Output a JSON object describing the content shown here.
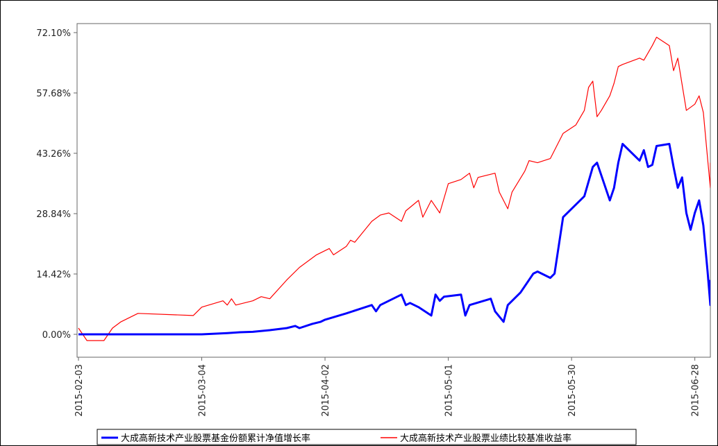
{
  "chart_data": {
    "type": "line",
    "title": "",
    "xlabel": "",
    "ylabel": "",
    "ylim": [
      -6,
      74
    ],
    "y_ticks": [
      0.0,
      14.42,
      28.84,
      43.26,
      57.68,
      72.1
    ],
    "y_tick_labels": [
      "0.00%",
      "14.42%",
      "28.84%",
      "43.26%",
      "57.68%",
      "72.10%"
    ],
    "x_range": [
      "2015-02-03",
      "2015-07-01"
    ],
    "x_ticks": [
      "2015-02-03",
      "2015-03-04",
      "2015-04-02",
      "2015-05-01",
      "2015-05-30",
      "2015-06-28"
    ],
    "grid": false,
    "legend_position": "bottom",
    "series": [
      {
        "name": "大成高新技术产业股票基金份额累计净值增长率",
        "color": "#0000ff",
        "points": [
          [
            "2015-02-03",
            0.0
          ],
          [
            "2015-02-10",
            0.0
          ],
          [
            "2015-02-17",
            0.0
          ],
          [
            "2015-02-26",
            0.0
          ],
          [
            "2015-03-04",
            0.0
          ],
          [
            "2015-03-10",
            0.3
          ],
          [
            "2015-03-13",
            0.5
          ],
          [
            "2015-03-16",
            0.6
          ],
          [
            "2015-03-20",
            1.0
          ],
          [
            "2015-03-24",
            1.5
          ],
          [
            "2015-03-26",
            2.0
          ],
          [
            "2015-03-27",
            1.5
          ],
          [
            "2015-03-30",
            2.5
          ],
          [
            "2015-04-01",
            3.0
          ],
          [
            "2015-04-02",
            3.5
          ],
          [
            "2015-04-07",
            5.0
          ],
          [
            "2015-04-10",
            6.0
          ],
          [
            "2015-04-13",
            7.0
          ],
          [
            "2015-04-14",
            5.5
          ],
          [
            "2015-04-15",
            7.0
          ],
          [
            "2015-04-20",
            9.5
          ],
          [
            "2015-04-21",
            7.0
          ],
          [
            "2015-04-22",
            7.5
          ],
          [
            "2015-04-24",
            6.5
          ],
          [
            "2015-04-27",
            4.5
          ],
          [
            "2015-04-28",
            9.5
          ],
          [
            "2015-04-29",
            8.0
          ],
          [
            "2015-04-30",
            9.0
          ],
          [
            "2015-05-04",
            9.5
          ],
          [
            "2015-05-05",
            4.5
          ],
          [
            "2015-05-06",
            7.0
          ],
          [
            "2015-05-11",
            8.5
          ],
          [
            "2015-05-12",
            5.5
          ],
          [
            "2015-05-14",
            3.0
          ],
          [
            "2015-05-15",
            7.0
          ],
          [
            "2015-05-18",
            10.0
          ],
          [
            "2015-05-21",
            14.5
          ],
          [
            "2015-05-22",
            15.0
          ],
          [
            "2015-05-25",
            13.5
          ],
          [
            "2015-05-26",
            14.5
          ],
          [
            "2015-05-28",
            28.0
          ],
          [
            "2015-06-02",
            33.0
          ],
          [
            "2015-06-04",
            40.0
          ],
          [
            "2015-06-05",
            41.0
          ],
          [
            "2015-06-08",
            32.0
          ],
          [
            "2015-06-09",
            35.0
          ],
          [
            "2015-06-10",
            41.0
          ],
          [
            "2015-06-11",
            45.5
          ],
          [
            "2015-06-12",
            44.5
          ],
          [
            "2015-06-15",
            41.5
          ],
          [
            "2015-06-16",
            44.0
          ],
          [
            "2015-06-17",
            40.0
          ],
          [
            "2015-06-18",
            40.5
          ],
          [
            "2015-06-19",
            45.0
          ],
          [
            "2015-06-22",
            45.5
          ],
          [
            "2015-06-23",
            40.0
          ],
          [
            "2015-06-24",
            35.0
          ],
          [
            "2015-06-25",
            37.5
          ],
          [
            "2015-06-26",
            29.0
          ],
          [
            "2015-06-27",
            25.0
          ],
          [
            "2015-06-28",
            29.0
          ],
          [
            "2015-06-29",
            32.0
          ],
          [
            "2015-06-30",
            26.0
          ],
          [
            "2015-07-01",
            15.0
          ],
          [
            "2015-07-06",
            7.0
          ],
          [
            "2015-07-08",
            13.0
          ]
        ]
      },
      {
        "name": "大成高新技术产业股票业绩比较基准收益率",
        "color": "#ff0000",
        "points": [
          [
            "2015-02-03",
            1.5
          ],
          [
            "2015-02-05",
            -1.5
          ],
          [
            "2015-02-09",
            -1.5
          ],
          [
            "2015-02-11",
            1.5
          ],
          [
            "2015-02-13",
            3.0
          ],
          [
            "2015-02-17",
            5.0
          ],
          [
            "2015-03-02",
            4.5
          ],
          [
            "2015-03-04",
            6.5
          ],
          [
            "2015-03-09",
            8.0
          ],
          [
            "2015-03-10",
            7.0
          ],
          [
            "2015-03-11",
            8.5
          ],
          [
            "2015-03-12",
            7.0
          ],
          [
            "2015-03-16",
            8.0
          ],
          [
            "2015-03-18",
            9.0
          ],
          [
            "2015-03-20",
            8.5
          ],
          [
            "2015-03-24",
            13.0
          ],
          [
            "2015-03-27",
            16.0
          ],
          [
            "2015-03-31",
            19.0
          ],
          [
            "2015-04-03",
            20.5
          ],
          [
            "2015-04-04",
            19.0
          ],
          [
            "2015-04-07",
            21.0
          ],
          [
            "2015-04-08",
            22.5
          ],
          [
            "2015-04-09",
            22.0
          ],
          [
            "2015-04-13",
            27.0
          ],
          [
            "2015-04-15",
            28.5
          ],
          [
            "2015-04-17",
            29.0
          ],
          [
            "2015-04-20",
            27.0
          ],
          [
            "2015-04-21",
            29.5
          ],
          [
            "2015-04-24",
            32.0
          ],
          [
            "2015-04-25",
            28.0
          ],
          [
            "2015-04-27",
            32.0
          ],
          [
            "2015-04-29",
            29.0
          ],
          [
            "2015-05-01",
            36.0
          ],
          [
            "2015-05-04",
            37.0
          ],
          [
            "2015-05-06",
            38.5
          ],
          [
            "2015-05-07",
            35.0
          ],
          [
            "2015-05-08",
            37.5
          ],
          [
            "2015-05-12",
            38.5
          ],
          [
            "2015-05-13",
            34.0
          ],
          [
            "2015-05-15",
            30.0
          ],
          [
            "2015-05-16",
            34.0
          ],
          [
            "2015-05-19",
            39.0
          ],
          [
            "2015-05-20",
            41.5
          ],
          [
            "2015-05-22",
            41.0
          ],
          [
            "2015-05-25",
            42.0
          ],
          [
            "2015-05-28",
            48.0
          ],
          [
            "2015-05-31",
            50.0
          ],
          [
            "2015-06-02",
            53.5
          ],
          [
            "2015-06-03",
            59.0
          ],
          [
            "2015-06-04",
            60.5
          ],
          [
            "2015-06-05",
            52.0
          ],
          [
            "2015-06-06",
            53.5
          ],
          [
            "2015-06-08",
            57.0
          ],
          [
            "2015-06-09",
            60.0
          ],
          [
            "2015-06-10",
            64.0
          ],
          [
            "2015-06-11",
            64.5
          ],
          [
            "2015-06-15",
            66.0
          ],
          [
            "2015-06-16",
            65.5
          ],
          [
            "2015-06-18",
            69.0
          ],
          [
            "2015-06-19",
            71.0
          ],
          [
            "2015-06-22",
            69.0
          ],
          [
            "2015-06-23",
            63.0
          ],
          [
            "2015-06-24",
            66.0
          ],
          [
            "2015-06-26",
            53.5
          ],
          [
            "2015-06-28",
            55.0
          ],
          [
            "2015-06-29",
            57.0
          ],
          [
            "2015-06-30",
            53.0
          ],
          [
            "2015-07-01",
            42.0
          ],
          [
            "2015-07-06",
            35.0
          ],
          [
            "2015-07-08",
            41.0
          ]
        ]
      }
    ]
  }
}
